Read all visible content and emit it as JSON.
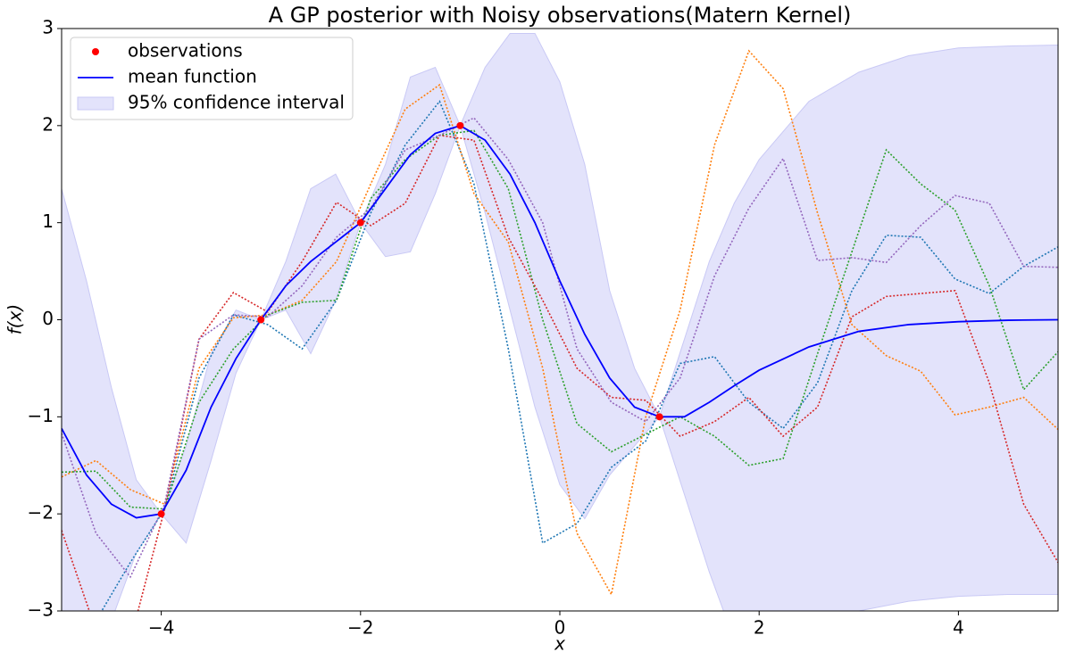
{
  "chart_data": {
    "type": "line",
    "title": "A GP posterior with Noisy observations(Matern Kernel)",
    "x_label": "x",
    "y_label": "f(x)",
    "xlim": [
      -5,
      5
    ],
    "ylim": [
      -3,
      3
    ],
    "xticks": [
      {
        "value": -4,
        "label": "−4"
      },
      {
        "value": -2,
        "label": "−2"
      },
      0,
      2,
      4
    ],
    "yticks": [
      {
        "value": -3,
        "label": "−3"
      },
      {
        "value": -2,
        "label": "−2"
      },
      {
        "value": -1,
        "label": "−1"
      },
      0,
      1,
      2,
      3
    ],
    "legend": "upper left",
    "series": [
      {
        "name": "observations",
        "kind": "scatter",
        "color": "#ff0000",
        "x": [
          -4,
          -3,
          -2,
          -1,
          1
        ],
        "values": [
          -2,
          0,
          1,
          2,
          -1
        ]
      },
      {
        "name": "mean function",
        "kind": "line",
        "color": "#0000ff",
        "x": [
          -5,
          -4.75,
          -4.5,
          -4.25,
          -4,
          -3.75,
          -3.5,
          -3.25,
          -3,
          -2.75,
          -2.5,
          -2.25,
          -2,
          -1.75,
          -1.5,
          -1.25,
          -1,
          -0.75,
          -0.5,
          -0.25,
          0,
          0.25,
          0.5,
          0.75,
          1,
          1.25,
          1.5,
          1.75,
          2,
          2.5,
          3,
          3.5,
          4,
          4.5,
          5
        ],
        "values": [
          -1.12,
          -1.6,
          -1.9,
          -2.04,
          -2.0,
          -1.55,
          -0.9,
          -0.4,
          0.0,
          0.35,
          0.6,
          0.8,
          1.0,
          1.35,
          1.7,
          1.92,
          2.0,
          1.85,
          1.5,
          1.0,
          0.4,
          -0.15,
          -0.6,
          -0.9,
          -1.0,
          -1.0,
          -0.85,
          -0.68,
          -0.52,
          -0.28,
          -0.12,
          -0.05,
          -0.02,
          -0.005,
          0.0
        ]
      },
      {
        "name": "95% confidence interval",
        "kind": "band",
        "color": "#e3e3fb",
        "x": [
          -5,
          -4.75,
          -4.5,
          -4.25,
          -4,
          -3.75,
          -3.5,
          -3.25,
          -3,
          -2.75,
          -2.5,
          -2.25,
          -2,
          -1.75,
          -1.5,
          -1.25,
          -1,
          -0.75,
          -0.5,
          -0.25,
          0,
          0.25,
          0.5,
          0.75,
          1,
          1.25,
          1.5,
          1.75,
          2,
          2.5,
          3,
          3.5,
          4,
          4.5,
          5
        ],
        "upper": [
          1.35,
          0.4,
          -0.7,
          -1.65,
          -2.0,
          -1.3,
          -0.35,
          0.1,
          0.0,
          0.6,
          1.35,
          1.5,
          1.0,
          1.6,
          2.5,
          2.6,
          2.0,
          2.6,
          2.95,
          2.95,
          2.45,
          1.6,
          0.3,
          -0.5,
          -1.0,
          -0.2,
          0.6,
          1.2,
          1.65,
          2.25,
          2.55,
          2.72,
          2.8,
          2.82,
          2.83
        ],
        "lower": [
          -3.6,
          -3.6,
          -3.1,
          -2.4,
          -2.0,
          -2.3,
          -1.45,
          -0.55,
          0.0,
          0.1,
          -0.35,
          0.2,
          1.0,
          0.65,
          0.7,
          1.3,
          2.0,
          1.1,
          0.1,
          -0.9,
          -1.7,
          -2.05,
          -1.6,
          -1.3,
          -1.0,
          -1.8,
          -2.6,
          -3.3,
          -3.6,
          -3.2,
          -3.0,
          -2.9,
          -2.85,
          -2.83,
          -2.83
        ]
      }
    ],
    "sample_x": [
      -5,
      -4.655,
      -4.31,
      -3.966,
      -3.621,
      -3.276,
      -2.931,
      -2.586,
      -2.241,
      -1.897,
      -1.552,
      -1.207,
      -0.862,
      -0.517,
      -0.172,
      0.172,
      0.517,
      0.862,
      1.207,
      1.552,
      1.897,
      2.241,
      2.586,
      2.931,
      3.276,
      3.621,
      3.966,
      4.31,
      4.655,
      5
    ],
    "samples": [
      {
        "color": "#1f77b4",
        "values": [
          -3.5,
          -3.1,
          -2.5,
          -1.95,
          -0.6,
          0.05,
          -0.05,
          -0.3,
          0.2,
          1.1,
          1.8,
          2.25,
          1.4,
          -0.3,
          -2.3,
          -2.1,
          -1.52,
          -1.25,
          -0.45,
          -0.38,
          -0.85,
          -1.12,
          -0.65,
          0.3,
          0.87,
          0.85,
          0.42,
          0.27,
          0.55,
          0.75
        ]
      },
      {
        "color": "#ff7f0e",
        "values": [
          -1.62,
          -1.45,
          -1.75,
          -1.9,
          -0.5,
          0.02,
          0.05,
          0.2,
          0.6,
          1.4,
          2.17,
          2.42,
          1.3,
          0.8,
          -0.5,
          -2.2,
          -2.83,
          -1.0,
          0.1,
          1.8,
          2.77,
          2.38,
          1.1,
          -0.05,
          -0.37,
          -0.53,
          -0.98,
          -0.9,
          -0.8,
          -1.13
        ]
      },
      {
        "color": "#2ca02c",
        "values": [
          -1.57,
          -1.56,
          -1.93,
          -1.95,
          -0.85,
          -0.3,
          0.05,
          0.18,
          0.2,
          1.25,
          1.65,
          1.9,
          1.95,
          1.35,
          0.0,
          -1.07,
          -1.36,
          -1.18,
          -1.0,
          -1.2,
          -1.5,
          -1.43,
          -0.35,
          0.7,
          1.75,
          1.4,
          1.13,
          0.35,
          -0.72,
          -0.33
        ]
      },
      {
        "color": "#d62728",
        "values": [
          -2.17,
          -3.2,
          -3.3,
          -1.95,
          -0.2,
          0.28,
          0.08,
          0.6,
          1.21,
          0.97,
          1.2,
          1.9,
          1.85,
          0.85,
          0.2,
          -0.5,
          -0.8,
          -0.83,
          -1.2,
          -1.05,
          -0.8,
          -1.2,
          -0.9,
          0.03,
          0.24,
          0.27,
          0.3,
          -0.65,
          -1.9,
          -2.5
        ]
      },
      {
        "color": "#9467bd",
        "values": [
          -1.17,
          -2.2,
          -2.65,
          -1.9,
          -0.2,
          0.05,
          0.03,
          0.35,
          0.85,
          1.15,
          1.75,
          1.9,
          2.08,
          1.65,
          1.0,
          -0.3,
          -0.85,
          -1.05,
          -0.6,
          0.45,
          1.15,
          1.66,
          0.61,
          0.64,
          0.59,
          0.97,
          1.28,
          1.2,
          0.55,
          0.54
        ]
      }
    ]
  }
}
